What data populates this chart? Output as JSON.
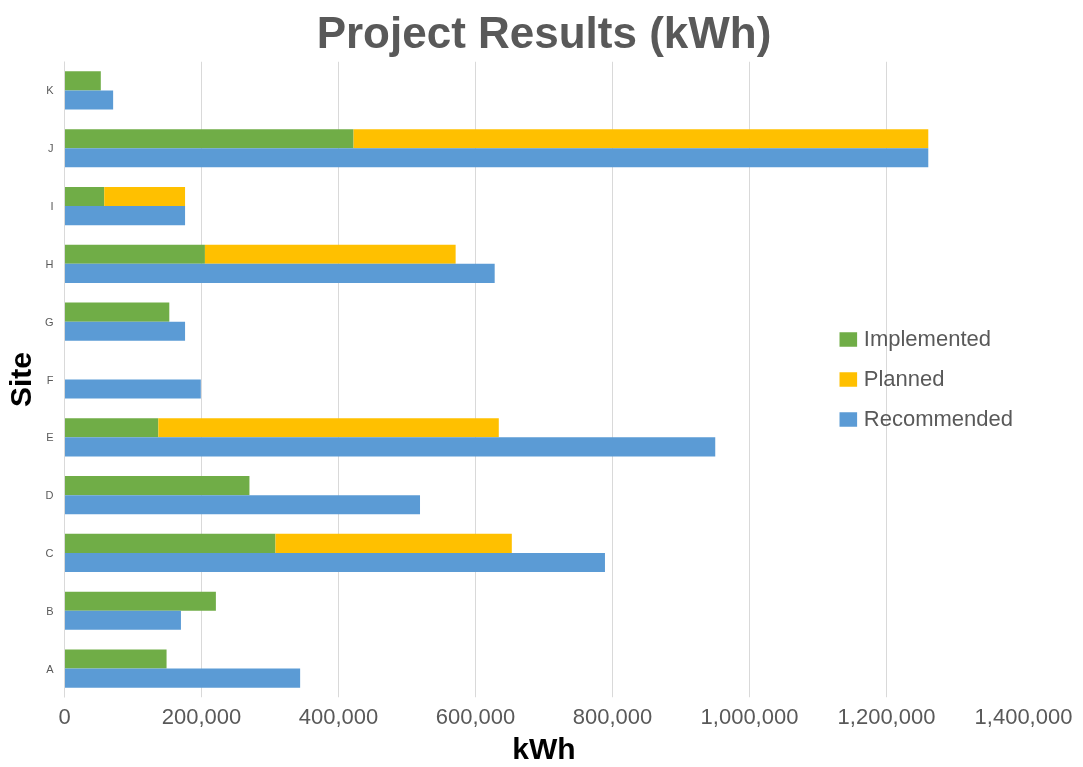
{
  "chart_data": {
    "type": "bar",
    "orientation": "horizontal",
    "title": "Project Results (kWh)",
    "xlabel": "kWh",
    "ylabel": "Site",
    "categories": [
      "K",
      "J",
      "I",
      "H",
      "G",
      "F",
      "E",
      "D",
      "C",
      "B",
      "A"
    ],
    "series": [
      {
        "name": "Implemented",
        "color": "#70ad47",
        "values": [
          53000,
          422000,
          58000,
          205000,
          153000,
          null,
          137000,
          270000,
          308000,
          221000,
          149000
        ]
      },
      {
        "name": "Planned",
        "color": "#ffc000",
        "values": [
          null,
          839000,
          118000,
          366000,
          null,
          null,
          497000,
          null,
          345000,
          null,
          null
        ],
        "base": [
          null,
          422000,
          58000,
          205000,
          null,
          null,
          137000,
          null,
          308000,
          null,
          null
        ]
      },
      {
        "name": "Recommended",
        "color": "#5b9bd5",
        "values": [
          71000,
          1261000,
          176000,
          628000,
          176000,
          199000,
          950000,
          519000,
          789000,
          170000,
          344000
        ]
      }
    ],
    "xlim": [
      0,
      1400000
    ],
    "xticks": [
      {
        "value": 0,
        "label": "0"
      },
      {
        "value": 200000,
        "label": "200,000"
      },
      {
        "value": 400000,
        "label": "400,000"
      },
      {
        "value": 600000,
        "label": "600,000"
      },
      {
        "value": 800000,
        "label": "800,000"
      },
      {
        "value": 1000000,
        "label": "1,000,000"
      },
      {
        "value": 1200000,
        "label": "1,200,000"
      },
      {
        "value": 1400000,
        "label": "1,400,000"
      }
    ],
    "grid": "x",
    "legend": "right"
  }
}
